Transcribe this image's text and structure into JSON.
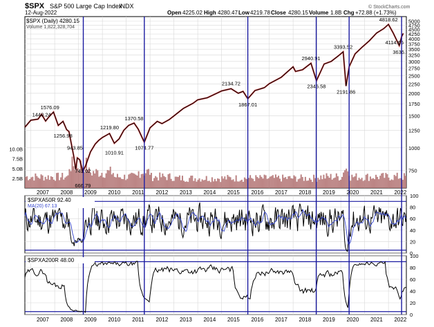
{
  "header": {
    "symbol": "$SPX",
    "name": "S&P 500 Large Cap Index",
    "exchange": "INDX",
    "date": "12-Aug-2022",
    "open_label": "Open",
    "open": "4225.02",
    "high_label": "High",
    "high": "4280.47",
    "low_label": "Low",
    "low": "4219.78",
    "close_label": "Close",
    "close": "4280.15",
    "volume_label": "Volume",
    "volume": "1.8B",
    "chg_label": "Chg",
    "chg": "+72.88 (+1.73%)",
    "watermark": "© StockCharts.com"
  },
  "chart_data": [
    {
      "type": "line",
      "legend": "$SPX (Daily) 4280.15",
      "volume_legend": "Volume 1,822,328,704",
      "y_scale": "log",
      "ylim": [
        600,
        5300
      ],
      "y_ticks": [
        750,
        1000,
        1250,
        1500,
        1750,
        2000,
        2250,
        2500,
        2750,
        3000,
        3250,
        3500,
        3750,
        4000,
        4250,
        4500,
        4750,
        5000
      ],
      "volume_ticks": [
        "2.5B",
        "5.0B",
        "7.5B",
        "10.0B"
      ],
      "volume_tick_values": [
        2.5,
        5.0,
        7.5,
        10.0
      ],
      "x_ticks": [
        "2007",
        "2008",
        "2009",
        "2010",
        "2011",
        "2012",
        "2013",
        "2014",
        "2015",
        "2016",
        "2017",
        "2018",
        "2019",
        "2020",
        "2021",
        "2022"
      ],
      "xlim": [
        2006.75,
        2022.75
      ],
      "series": [
        {
          "x": [
            2006.75,
            2007.0,
            2007.3,
            2007.45,
            2007.62,
            2007.79,
            2007.95,
            2008.15,
            2008.35,
            2008.5,
            2008.6,
            2008.7,
            2008.8,
            2008.88,
            2008.95,
            2009.05,
            2009.18,
            2009.3,
            2009.5,
            2009.7,
            2009.85,
            2010.0,
            2010.3,
            2010.5,
            2010.7,
            2010.9,
            2011.1,
            2011.33,
            2011.5,
            2011.76,
            2012.0,
            2012.3,
            2012.5,
            2012.8,
            2013.0,
            2013.4,
            2013.8,
            2014.0,
            2014.4,
            2014.8,
            2015.0,
            2015.4,
            2015.7,
            2015.9,
            2016.1,
            2016.4,
            2016.8,
            2017.0,
            2017.5,
            2018.0,
            2018.1,
            2018.4,
            2018.75,
            2018.98,
            2019.3,
            2019.6,
            2019.9,
            2020.1,
            2020.22,
            2020.35,
            2020.6,
            2020.9,
            2021.2,
            2021.5,
            2021.8,
            2022.0,
            2022.2,
            2022.45,
            2022.55,
            2022.62
          ],
          "y": [
            1300,
            1420,
            1440,
            1530,
            1406,
            1500,
            1576,
            1330,
            1400,
            1260,
            1230,
            1050,
            900,
            760,
            880,
            860,
            741,
            800,
            950,
            1050,
            1100,
            1140,
            1200,
            1060,
            1120,
            1250,
            1330,
            1370,
            1270,
            1074,
            1290,
            1400,
            1360,
            1430,
            1500,
            1650,
            1760,
            1840,
            1890,
            2000,
            2060,
            2120,
            2000,
            2050,
            1867,
            2070,
            2150,
            2260,
            2450,
            2800,
            2640,
            2700,
            2930,
            2347,
            2900,
            3000,
            3220,
            3390,
            2192,
            2800,
            3300,
            3600,
            3900,
            4300,
            4550,
            4800,
            4300,
            3667,
            4100,
            4280
          ]
        }
      ],
      "annotations": [
        {
          "label": "1576.09",
          "x": 2007.8,
          "y": 1576
        },
        {
          "label": "1440.24",
          "x": 2007.45,
          "y": 1440
        },
        {
          "label": "1256.98",
          "x": 2008.35,
          "y": 1257
        },
        {
          "label": "943.85",
          "x": 2008.85,
          "y": 944
        },
        {
          "label": "741.02",
          "x": 2009.18,
          "y": 741
        },
        {
          "label": "666.79",
          "x": 2009.18,
          "y": 667
        },
        {
          "label": "1219.80",
          "x": 2010.3,
          "y": 1220
        },
        {
          "label": "1010.91",
          "x": 2010.5,
          "y": 1011
        },
        {
          "label": "1370.58",
          "x": 2011.33,
          "y": 1371
        },
        {
          "label": "1074.77",
          "x": 2011.76,
          "y": 1075
        },
        {
          "label": "2134.72",
          "x": 2015.4,
          "y": 2135
        },
        {
          "label": "1867.01",
          "x": 2016.1,
          "y": 1867
        },
        {
          "label": "2940.91",
          "x": 2018.75,
          "y": 2941
        },
        {
          "label": "2346.58",
          "x": 2018.98,
          "y": 2347
        },
        {
          "label": "3393.52",
          "x": 2020.1,
          "y": 3394
        },
        {
          "label": "2191.86",
          "x": 2020.22,
          "y": 2192
        },
        {
          "label": "4818.62",
          "x": 2022.0,
          "y": 4819
        },
        {
          "label": "4114.65",
          "x": 2022.25,
          "y": 4115
        },
        {
          "label": "3636.",
          "x": 2022.45,
          "y": 3636
        }
      ],
      "vertical_markers": [
        2009.2,
        2011.76,
        2016.1,
        2018.97,
        2020.35,
        2022.55
      ]
    },
    {
      "type": "line",
      "legend": "$SPXA50R 92.40",
      "ma_legend": "MA(20) 67.13",
      "ylim": [
        0,
        100
      ],
      "y_ticks": [
        0,
        20,
        40,
        60,
        80,
        100
      ],
      "reference_lines": [
        5,
        90
      ]
    },
    {
      "type": "line",
      "legend": "$SPXA200R 48.00",
      "ylim": [
        0,
        100
      ],
      "y_ticks": [
        0,
        20,
        40,
        60,
        80,
        100
      ],
      "reference_lines": [
        5,
        90
      ]
    }
  ],
  "colors": {
    "price": "#000000",
    "price_bars": "#cc0000",
    "volume": "#b07070",
    "breadth": "#000000",
    "breadth_ma": "#3344cc",
    "marker": "#1a1aa0",
    "grid": "#d8d8d8",
    "zero_line": "#1a1aa0"
  }
}
